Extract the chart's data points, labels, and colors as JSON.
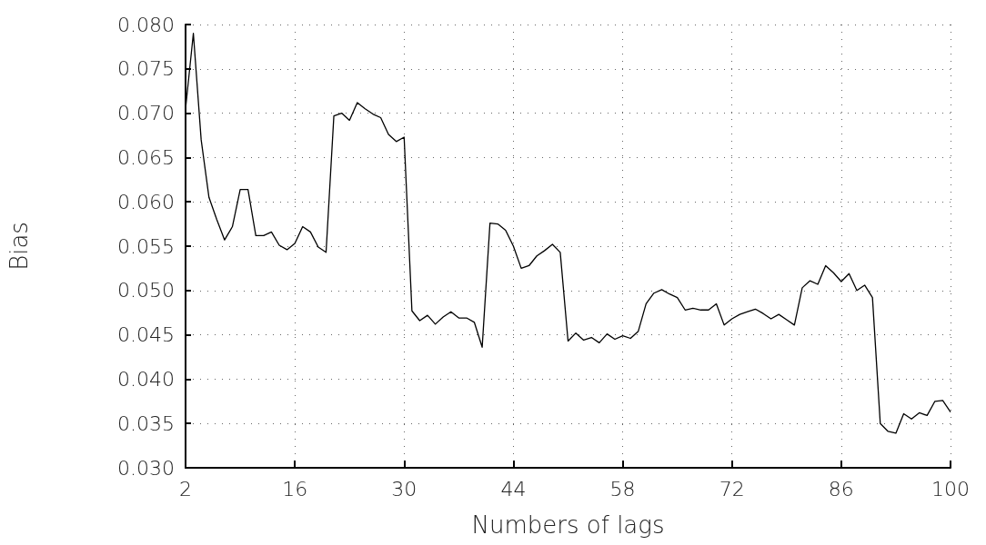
{
  "chart_data": {
    "type": "line",
    "xlabel": "Numbers of lags",
    "ylabel": "Bias",
    "x": [
      2,
      3,
      4,
      5,
      6,
      7,
      8,
      9,
      10,
      11,
      12,
      13,
      14,
      15,
      16,
      17,
      18,
      19,
      20,
      21,
      22,
      23,
      24,
      25,
      26,
      27,
      28,
      29,
      30,
      31,
      32,
      33,
      34,
      35,
      36,
      37,
      38,
      39,
      40,
      41,
      42,
      43,
      44,
      45,
      46,
      47,
      48,
      49,
      50,
      51,
      52,
      53,
      54,
      55,
      56,
      57,
      58,
      59,
      60,
      61,
      62,
      63,
      64,
      65,
      66,
      67,
      68,
      69,
      70,
      71,
      72,
      73,
      74,
      75,
      76,
      77,
      78,
      79,
      80,
      81,
      82,
      83,
      84,
      85,
      86,
      87,
      88,
      89,
      90,
      91,
      92,
      93,
      94,
      95,
      96,
      97,
      98,
      99,
      100
    ],
    "series": [
      {
        "color": "#000000",
        "values": [
          0.0705,
          0.079,
          0.067,
          0.0605,
          0.058,
          0.0557,
          0.0572,
          0.0614,
          0.0614,
          0.0562,
          0.0562,
          0.0566,
          0.0551,
          0.0546,
          0.0553,
          0.0572,
          0.0566,
          0.0549,
          0.0543,
          0.0697,
          0.07,
          0.0692,
          0.0712,
          0.0705,
          0.0699,
          0.0695,
          0.0676,
          0.0668,
          0.0673,
          0.0477,
          0.0466,
          0.0472,
          0.0462,
          0.047,
          0.0476,
          0.0469,
          0.0469,
          0.0464,
          0.0436,
          0.0576,
          0.0575,
          0.0568,
          0.055,
          0.0525,
          0.0528,
          0.0539,
          0.0545,
          0.0552,
          0.0543,
          0.0443,
          0.0452,
          0.0444,
          0.0447,
          0.0441,
          0.0451,
          0.0445,
          0.0449,
          0.0446,
          0.0454,
          0.0485,
          0.0497,
          0.0501,
          0.0496,
          0.0492,
          0.0478,
          0.048,
          0.0478,
          0.0478,
          0.0485,
          0.0461,
          0.0468,
          0.0473,
          0.0476,
          0.0479,
          0.0474,
          0.0468,
          0.0473,
          0.0467,
          0.0461,
          0.0503,
          0.0511,
          0.0507,
          0.0528,
          0.052,
          0.051,
          0.0519,
          0.05,
          0.0506,
          0.0492,
          0.035,
          0.0341,
          0.0339,
          0.0361,
          0.0355,
          0.0362,
          0.0359,
          0.0375,
          0.0376,
          0.0363
        ]
      }
    ],
    "xlim": [
      2,
      100
    ],
    "xticks": [
      2,
      16,
      30,
      44,
      58,
      72,
      86,
      100
    ],
    "ylim": [
      0.03,
      0.08
    ],
    "yticks": [
      {
        "value": 0.03,
        "label": "0.030"
      },
      {
        "value": 0.035,
        "label": "0.035"
      },
      {
        "value": 0.04,
        "label": "0.040"
      },
      {
        "value": 0.045,
        "label": "0.045"
      },
      {
        "value": 0.05,
        "label": "0.050"
      },
      {
        "value": 0.055,
        "label": "0.055"
      },
      {
        "value": 0.06,
        "label": "0.060"
      },
      {
        "value": 0.065,
        "label": "0.065"
      },
      {
        "value": 0.07,
        "label": "0.070"
      },
      {
        "value": 0.075,
        "label": "0.075"
      },
      {
        "value": 0.08,
        "label": "0.080"
      }
    ],
    "grid": true,
    "marker": "none",
    "line_style": "solid"
  }
}
